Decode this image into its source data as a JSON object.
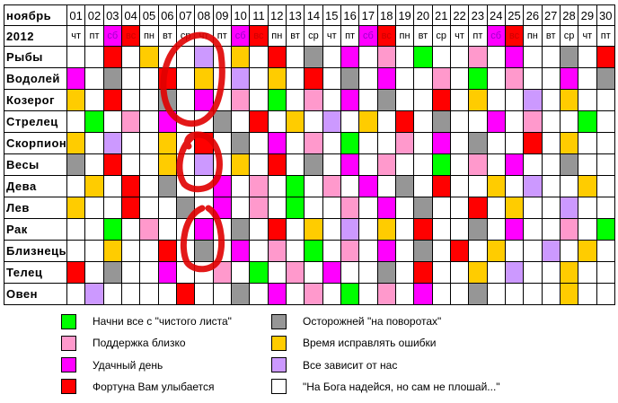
{
  "header": {
    "month": "ноябрь",
    "year": "2012"
  },
  "days": [
    {
      "num": "01",
      "dow": "чт"
    },
    {
      "num": "02",
      "dow": "пт"
    },
    {
      "num": "03",
      "dow": "сб",
      "mark": "M"
    },
    {
      "num": "04",
      "dow": "вс",
      "mark": "R"
    },
    {
      "num": "05",
      "dow": "пн"
    },
    {
      "num": "06",
      "dow": "вт"
    },
    {
      "num": "07",
      "dow": "ср"
    },
    {
      "num": "08",
      "dow": "чт"
    },
    {
      "num": "09",
      "dow": "пт"
    },
    {
      "num": "10",
      "dow": "сб",
      "mark": "M"
    },
    {
      "num": "11",
      "dow": "вс",
      "mark": "R"
    },
    {
      "num": "12",
      "dow": "пн"
    },
    {
      "num": "13",
      "dow": "вт"
    },
    {
      "num": "14",
      "dow": "ср"
    },
    {
      "num": "15",
      "dow": "чт"
    },
    {
      "num": "16",
      "dow": "пт"
    },
    {
      "num": "17",
      "dow": "сб",
      "mark": "M"
    },
    {
      "num": "18",
      "dow": "вс",
      "mark": "R"
    },
    {
      "num": "19",
      "dow": "пн"
    },
    {
      "num": "20",
      "dow": "вт"
    },
    {
      "num": "21",
      "dow": "ср"
    },
    {
      "num": "22",
      "dow": "чт"
    },
    {
      "num": "23",
      "dow": "пт"
    },
    {
      "num": "24",
      "dow": "сб",
      "mark": "M"
    },
    {
      "num": "25",
      "dow": "вс",
      "mark": "R"
    },
    {
      "num": "26",
      "dow": "пн"
    },
    {
      "num": "27",
      "dow": "вт"
    },
    {
      "num": "28",
      "dow": "ср"
    },
    {
      "num": "29",
      "dow": "чт"
    },
    {
      "num": "30",
      "dow": "пт"
    }
  ],
  "colors": {
    "W": "#ffffff",
    "R": "#ff0000",
    "M": "#ff00ff",
    "P": "#ff99cc",
    "Y": "#ffcc00",
    "G": "#969696",
    "N": "#00ff00",
    "L": "#cc99ff"
  },
  "signs": [
    {
      "name": "Рыбы",
      "cells": "WWRWYWWLWYWRWGWMWPWNWWPWMWWGWR"
    },
    {
      "name": "Водолей",
      "cells": "MWGWWRWYWLWYWRWGWMWWPWNWPWWMWG"
    },
    {
      "name": "Козерог",
      "cells": "YWRWWGWMWPWNWPWMWGWWRWYWWLWYWW"
    },
    {
      "name": "Стрелец",
      "cells": "WNWPWMWWGWRWYWLWYWRWGWWMWPWWNW"
    },
    {
      "name": "Скорпион",
      "cells": "YWLWWYWRWGWMWPWNWWPWMWGWWRWYWW"
    },
    {
      "name": "Весы",
      "cells": "GWRWWYWLWYWRWGWMWPWWNWPWMWWGWW"
    },
    {
      "name": "Дева",
      "cells": "WYWRWGWWMWPWNWPWMWGWRWWYWLWWYW"
    },
    {
      "name": "Лев",
      "cells": "YWWRWWGWMWPWNWWPWMWGWWRWYWWLWW"
    },
    {
      "name": "Рак",
      "cells": "WWNWPWWMWGWRWYWLWYWRWWGWMWWPWN"
    },
    {
      "name": "Близнецы",
      "cells": "WWYWWRWGWMWPWNWPWMWGWRWYWWLWYW"
    },
    {
      "name": "Телец",
      "cells": "RWGWWMWWPWNWPWMWWGWRWWYWLWWYWW"
    },
    {
      "name": "Овен",
      "cells": "WLWWWWRWWGWMWPWNWPWMWWGWWWWYWW"
    }
  ],
  "legend": [
    {
      "code": "N",
      "label": "Начни все с \"чистого листа\""
    },
    {
      "code": "P",
      "label": "Поддержка близко"
    },
    {
      "code": "M",
      "label": "Удачный день"
    },
    {
      "code": "R",
      "label": "Фортуна Вам улыбается"
    },
    {
      "code": "G",
      "label": "Осторожней \"на поворотах\""
    },
    {
      "code": "Y",
      "label": "Время исправлять ошибки"
    },
    {
      "code": "L",
      "label": "Все зависит от нас"
    },
    {
      "code": "W",
      "label": "\"На Бога надейся, но сам не плошай...\""
    }
  ]
}
